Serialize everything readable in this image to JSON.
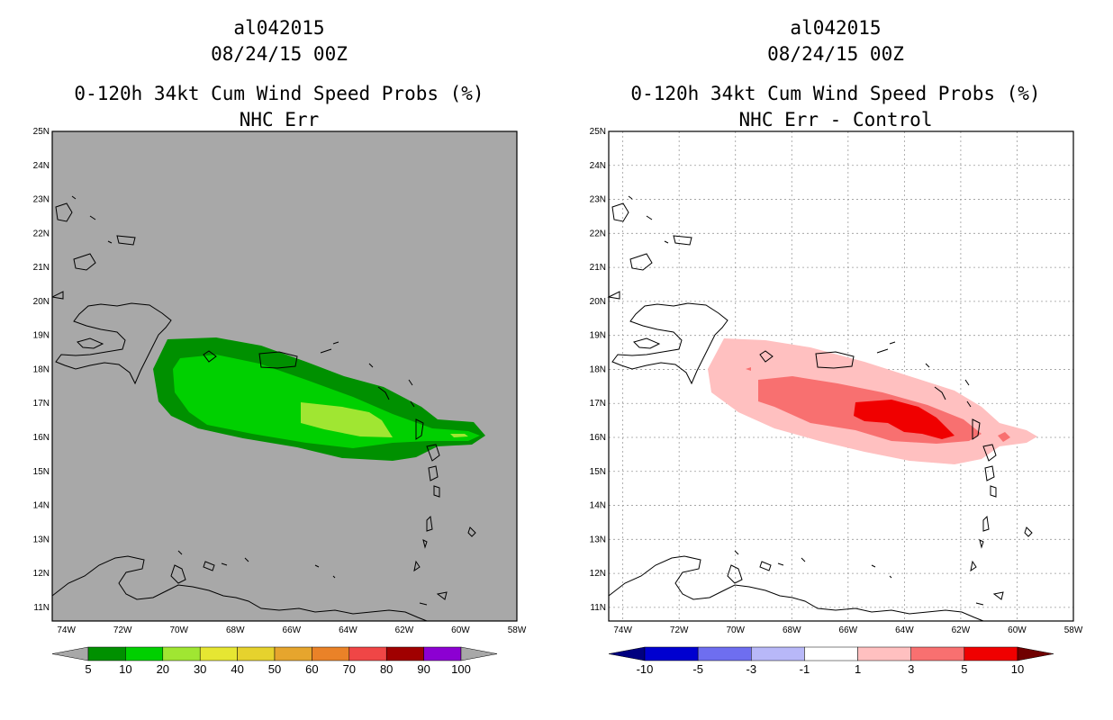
{
  "panels": [
    {
      "id": "left",
      "storm": "al042015",
      "datetime": "08/24/15 00Z",
      "product": "0-120h 34kt Cum Wind Speed Probs (%)",
      "subtitle": "NHC Err",
      "colorbar": {
        "labels": [
          "5",
          "10",
          "20",
          "30",
          "40",
          "50",
          "60",
          "70",
          "80",
          "90",
          "100"
        ],
        "colors": [
          "#009000",
          "#00d000",
          "#a0e632",
          "#e6e632",
          "#e6d22d",
          "#e6a52d",
          "#ea8228",
          "#f04646",
          "#a00000",
          "#8c00d2"
        ],
        "end_low": "#a8a8a8",
        "end_high": "#a8a8a8"
      },
      "background": "#a8a8a8"
    },
    {
      "id": "right",
      "storm": "al042015",
      "datetime": "08/24/15 00Z",
      "product": "0-120h 34kt Cum Wind Speed Probs (%)",
      "subtitle": "NHC Err - Control",
      "colorbar": {
        "labels": [
          "-10",
          "-5",
          "-3",
          "-1",
          "1",
          "3",
          "5",
          "10"
        ],
        "colors": [
          "#0000d0",
          "#6e6ef0",
          "#b8b8f8",
          "#ffffff",
          "#ffc0c0",
          "#f87070",
          "#f00000"
        ],
        "end_low": "#000080",
        "end_high": "#700000"
      },
      "background": "#ffffff"
    }
  ],
  "axes": {
    "lat_labels": [
      "25N",
      "24N",
      "23N",
      "22N",
      "21N",
      "20N",
      "19N",
      "18N",
      "17N",
      "16N",
      "15N",
      "14N",
      "13N",
      "12N",
      "11N"
    ],
    "lon_labels": [
      "74W",
      "72W",
      "70W",
      "68W",
      "66W",
      "64W",
      "62W",
      "60W",
      "58W"
    ],
    "lat_range": [
      10.6,
      25.0
    ],
    "lon_range": [
      -74.5,
      -58.0
    ]
  }
}
